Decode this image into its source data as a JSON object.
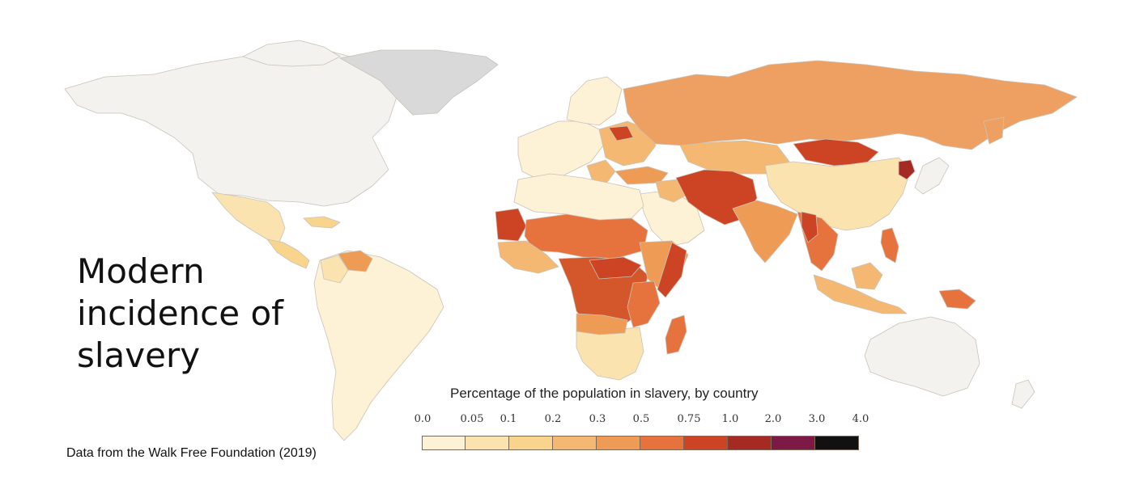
{
  "title": "Modern\nincidence of\nslavery",
  "source": "Data from the Walk Free Foundation (2019)",
  "legend": {
    "title": "Percentage of the population in slavery, by country",
    "ticks": [
      "0.0",
      "0.05",
      "0.1",
      "0.2",
      "0.3",
      "0.5",
      "0.75",
      "1.0",
      "2.0",
      "3.0",
      "4.0"
    ],
    "colors": [
      "#fdf1d6",
      "#fbe3b0",
      "#f8d48c",
      "#f4b872",
      "#ee9b56",
      "#e6733d",
      "#cc4424",
      "#a52a23",
      "#7c1944",
      "#111111"
    ],
    "no_data_color": "#d9d9d9",
    "not_estimated_color": "#f2f2ee"
  }
}
